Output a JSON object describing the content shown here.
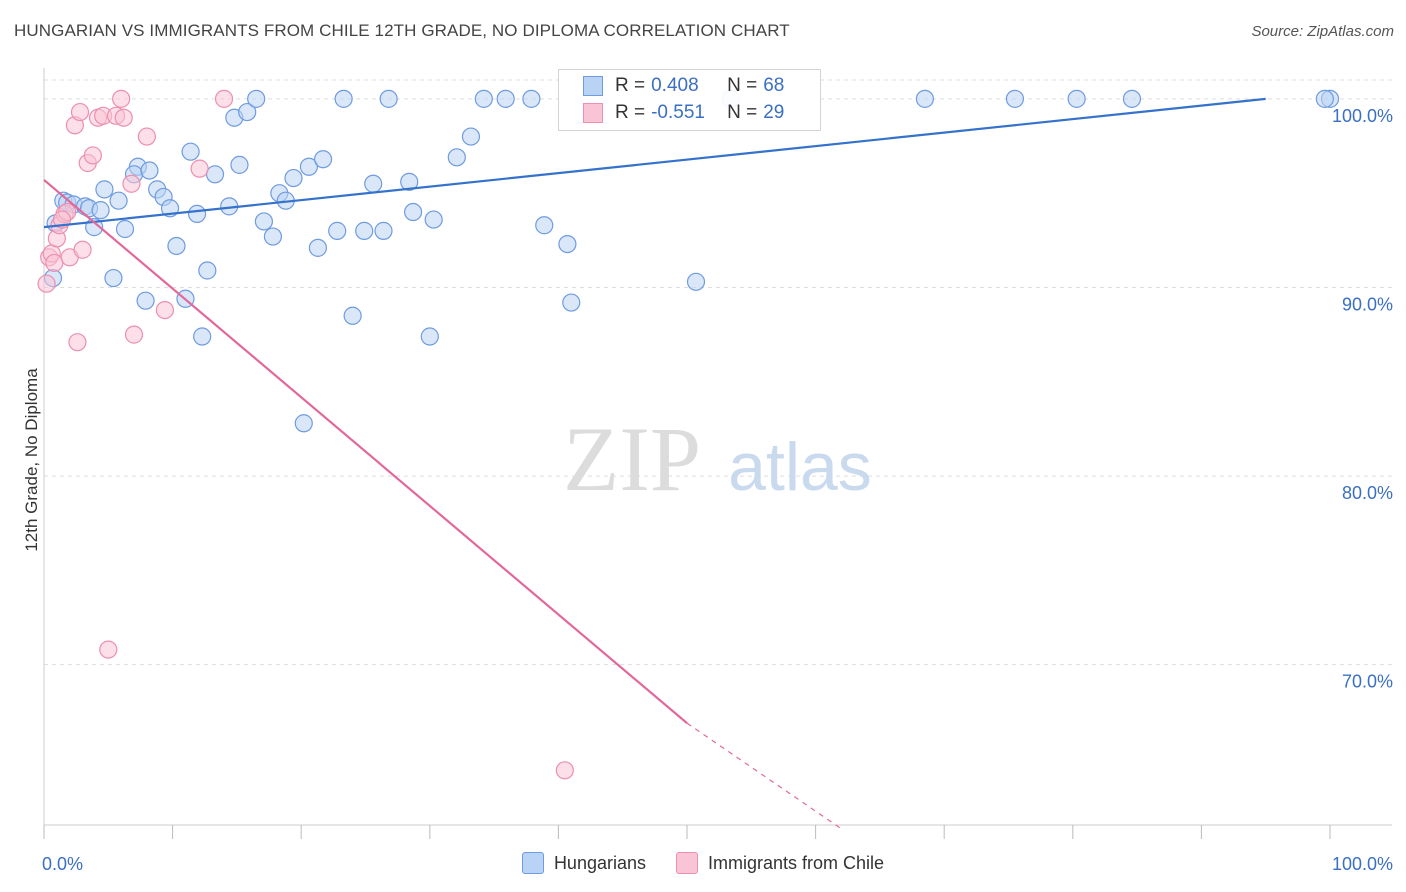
{
  "title": "HUNGARIAN VS IMMIGRANTS FROM CHILE 12TH GRADE, NO DIPLOMA CORRELATION CHART",
  "source": "Source: ZipAtlas.com",
  "watermark": {
    "zip": "ZIP",
    "atlas": "atlas"
  },
  "legend": {
    "r_label": "R =",
    "n_label": "N =",
    "rows": [
      {
        "r": "0.408",
        "n": "68",
        "fill": "#b9d3f4",
        "stroke": "#6f9be0"
      },
      {
        "r": "-0.551",
        "n": "29",
        "fill": "#f9c5d6",
        "stroke": "#ec8fb0"
      }
    ]
  },
  "bottom_legend": [
    {
      "label": "Hungarians",
      "fill": "#b9d3f4",
      "stroke": "#6f9be0"
    },
    {
      "label": "Immigrants from Chile",
      "fill": "#f9c5d6",
      "stroke": "#ec8fb0"
    }
  ],
  "chart_data": {
    "type": "scatter",
    "xlabel": "",
    "ylabel": "12th Grade, No Diploma",
    "xlim": [
      0,
      100
    ],
    "ylim": [
      61.5,
      101.0
    ],
    "x_tick_labels": [
      {
        "value": 0,
        "label": "0.0%"
      },
      {
        "value": 100,
        "label": "100.0%"
      }
    ],
    "y_tick_labels": [
      {
        "value": 100,
        "label": "100.0%"
      },
      {
        "value": 90,
        "label": "90.0%"
      },
      {
        "value": 80,
        "label": "80.0%"
      },
      {
        "value": 70,
        "label": "70.0%"
      }
    ],
    "x_minor_ticks": [
      0,
      10,
      20,
      30,
      40,
      50,
      60,
      70,
      80,
      90,
      100
    ],
    "grid": true,
    "series": [
      {
        "name": "Hungarians",
        "color": "#6f9be0",
        "fill": "#b9d3f4",
        "trend": {
          "x0": 0,
          "y0": 93.2,
          "x1": 95,
          "y1": 100.0,
          "color": "#3572cc"
        },
        "points": [
          [
            0.7,
            90.5
          ],
          [
            0.9,
            93.4
          ],
          [
            1.5,
            94.6
          ],
          [
            1.8,
            94.5
          ],
          [
            2.3,
            94.4
          ],
          [
            3.2,
            94.3
          ],
          [
            3.5,
            94.2
          ],
          [
            3.9,
            93.2
          ],
          [
            4.4,
            94.1
          ],
          [
            5.4,
            90.5
          ],
          [
            4.7,
            95.2
          ],
          [
            5.8,
            94.6
          ],
          [
            6.3,
            93.1
          ],
          [
            7.3,
            96.4
          ],
          [
            7.0,
            96.0
          ],
          [
            8.2,
            96.2
          ],
          [
            8.8,
            95.2
          ],
          [
            9.3,
            94.8
          ],
          [
            9.8,
            94.2
          ],
          [
            7.9,
            89.3
          ],
          [
            10.3,
            92.2
          ],
          [
            11.0,
            89.4
          ],
          [
            11.4,
            97.2
          ],
          [
            11.9,
            93.9
          ],
          [
            12.3,
            87.4
          ],
          [
            12.7,
            90.9
          ],
          [
            13.3,
            96.0
          ],
          [
            14.4,
            94.3
          ],
          [
            14.8,
            99.0
          ],
          [
            15.2,
            96.5
          ],
          [
            15.8,
            99.3
          ],
          [
            16.5,
            100.0
          ],
          [
            17.1,
            93.5
          ],
          [
            17.8,
            92.7
          ],
          [
            18.3,
            95.0
          ],
          [
            18.8,
            94.6
          ],
          [
            19.4,
            95.8
          ],
          [
            20.2,
            82.8
          ],
          [
            20.6,
            96.4
          ],
          [
            21.3,
            92.1
          ],
          [
            21.7,
            96.8
          ],
          [
            22.8,
            93.0
          ],
          [
            23.3,
            100.0
          ],
          [
            24.0,
            88.5
          ],
          [
            24.9,
            93.0
          ],
          [
            25.6,
            95.5
          ],
          [
            26.4,
            93.0
          ],
          [
            26.8,
            100.0
          ],
          [
            28.4,
            95.6
          ],
          [
            28.7,
            94.0
          ],
          [
            30.0,
            87.4
          ],
          [
            30.3,
            93.6
          ],
          [
            32.1,
            96.9
          ],
          [
            33.2,
            98.0
          ],
          [
            34.2,
            100.0
          ],
          [
            35.9,
            100.0
          ],
          [
            37.9,
            100.0
          ],
          [
            38.9,
            93.3
          ],
          [
            40.7,
            92.3
          ],
          [
            41.0,
            89.2
          ],
          [
            50.7,
            90.3
          ],
          [
            53.4,
            100.0
          ],
          [
            68.5,
            100.0
          ],
          [
            75.5,
            100.0
          ],
          [
            80.3,
            100.0
          ],
          [
            84.6,
            100.0
          ],
          [
            100.0,
            100.0
          ],
          [
            99.6,
            100.0
          ]
        ]
      },
      {
        "name": "Immigrants from Chile",
        "color": "#ec8fb0",
        "fill": "#f9c5d6",
        "trend": {
          "x0": 0,
          "y0": 95.7,
          "x1": 50.0,
          "y1": 66.9,
          "color": "#e3689a"
        },
        "trend_dashed": {
          "x0": 50.0,
          "y0": 66.9,
          "x1": 62.0,
          "y1": 61.3
        },
        "points": [
          [
            0.2,
            90.2
          ],
          [
            0.4,
            91.6
          ],
          [
            0.6,
            91.8
          ],
          [
            0.8,
            91.3
          ],
          [
            1.0,
            92.6
          ],
          [
            1.2,
            93.3
          ],
          [
            1.6,
            93.9
          ],
          [
            1.8,
            94.0
          ],
          [
            2.0,
            91.6
          ],
          [
            2.4,
            98.6
          ],
          [
            2.6,
            87.1
          ],
          [
            2.8,
            99.3
          ],
          [
            3.0,
            92.0
          ],
          [
            3.4,
            96.6
          ],
          [
            3.8,
            97.0
          ],
          [
            4.2,
            99.0
          ],
          [
            4.6,
            99.1
          ],
          [
            5.0,
            70.8
          ],
          [
            5.6,
            99.1
          ],
          [
            6.2,
            99.0
          ],
          [
            6.0,
            100.0
          ],
          [
            6.8,
            95.5
          ],
          [
            7.0,
            87.5
          ],
          [
            8.0,
            98.0
          ],
          [
            9.4,
            88.8
          ],
          [
            12.1,
            96.3
          ],
          [
            14.0,
            100.0
          ],
          [
            40.5,
            64.4
          ],
          [
            1.4,
            93.6
          ]
        ]
      }
    ]
  }
}
